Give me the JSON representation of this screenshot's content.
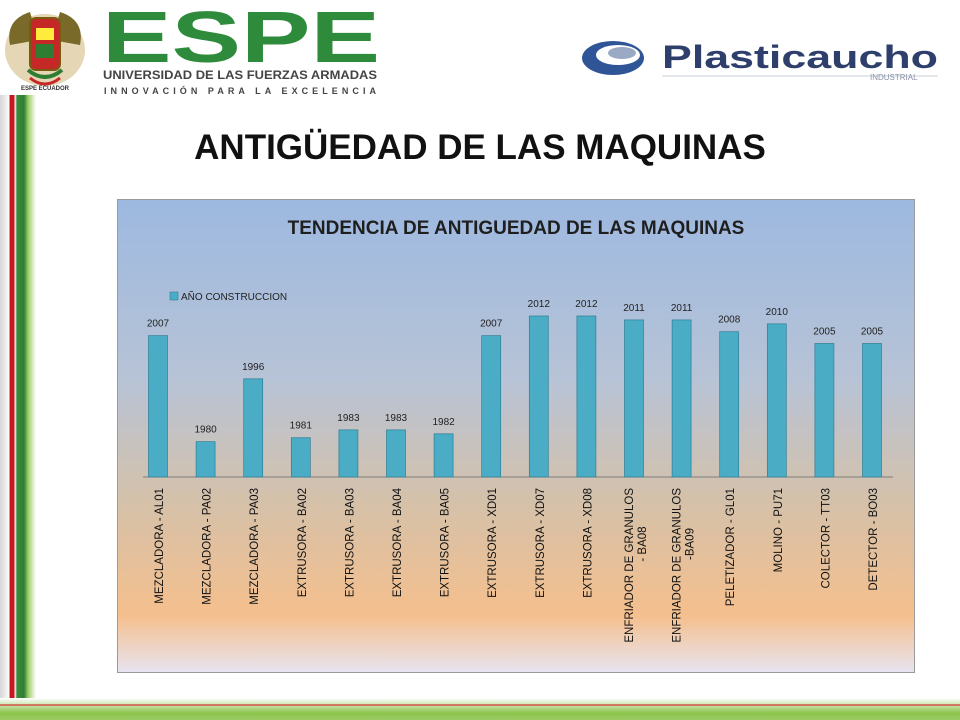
{
  "header": {
    "espe": {
      "brand": "ESPE",
      "university": "UNIVERSIDAD DE LAS FUERZAS ARMADAS",
      "motto": "INNOVACIÓN PARA LA EXCELENCIA",
      "seal_text": "ESPE ECUADOR"
    },
    "plasticaucho": {
      "brand": "Plasticaucho",
      "sub": "INDUSTRIAL"
    }
  },
  "slide": {
    "title": "ANTIGÜEDAD DE LAS MAQUINAS"
  },
  "colors": {
    "bar": "#4bacc6",
    "bar_border": "#2e7f96",
    "espe_green": "#2e8b3c",
    "plasti_blue": "#2f5597"
  },
  "chart_data": {
    "type": "bar",
    "title": "TENDENCIA DE ANTIGUEDAD DE LAS MAQUINAS",
    "legend": "top-left",
    "categories": [
      "MEZCLADORA - AL01",
      "MEZCLADORA - PA02",
      "MEZCLADORA - PA03",
      "EXTRUSORA - BA02",
      "EXTRUSORA - BA03",
      "EXTRUSORA - BA04",
      "EXTRUSORA - BA05",
      "EXTRUSORA - XD01",
      "EXTRUSORA - XD07",
      "EXTRUSORA - XD08",
      "ENFRIADOR DE GRANULOS - BA08",
      "ENFRIADOR DE GRANULOS -BA09",
      "PELETIZADOR - GL01",
      "MOLINO - PU71",
      "COLECTOR - TT03",
      "DETECTOR - BO03"
    ],
    "category_lines": [
      [
        "MEZCLADORA - AL01"
      ],
      [
        "MEZCLADORA - PA02"
      ],
      [
        "MEZCLADORA - PA03"
      ],
      [
        "EXTRUSORA - BA02"
      ],
      [
        "EXTRUSORA - BA03"
      ],
      [
        "EXTRUSORA - BA04"
      ],
      [
        "EXTRUSORA - BA05"
      ],
      [
        "EXTRUSORA - XD01"
      ],
      [
        "EXTRUSORA - XD07"
      ],
      [
        "EXTRUSORA - XD08"
      ],
      [
        "ENFRIADOR DE GRANULOS",
        "- BA08"
      ],
      [
        "ENFRIADOR DE GRANULOS",
        "-BA09"
      ],
      [
        "PELETIZADOR - GL01"
      ],
      [
        "MOLINO - PU71"
      ],
      [
        "COLECTOR - TT03"
      ],
      [
        "DETECTOR - BO03"
      ]
    ],
    "series": [
      {
        "name": "AÑO CONSTRUCCION",
        "values": [
          2007,
          1980,
          1996,
          1981,
          1983,
          1983,
          1982,
          2007,
          2012,
          2012,
          2011,
          2011,
          2008,
          2010,
          2005,
          2005
        ]
      }
    ],
    "ylim": [
      1971,
      2015
    ],
    "grid": false,
    "axes_visible": {
      "x": true,
      "y": false
    }
  }
}
